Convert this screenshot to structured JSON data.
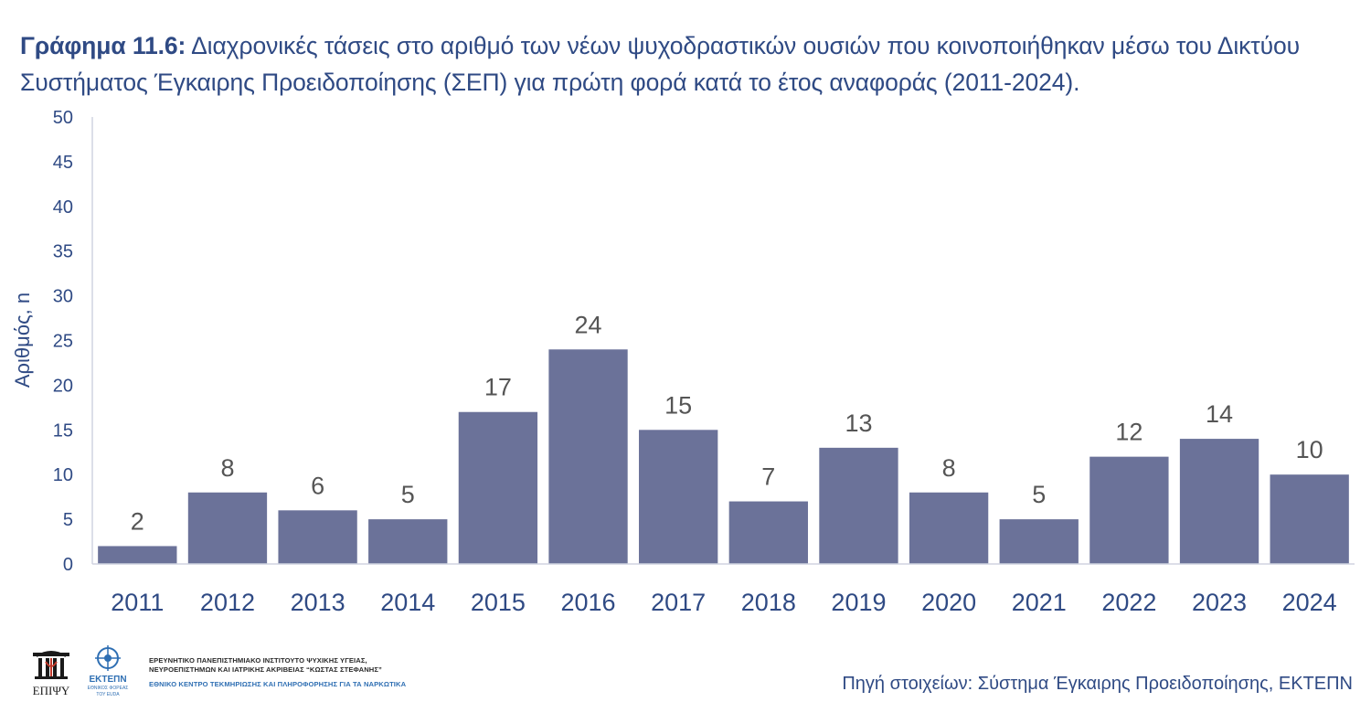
{
  "header": {
    "title_lead": "Γράφημα 11.6:",
    "title_text": "Διαχρονικές τάσεις στο αριθμό των νέων ψυχοδραστικών ουσιών που κοινοποιήθηκαν μέσω του Δικτύου Συστήματος Έγκαιρης Προειδοποίησης (ΣΕΠ) για πρώτη φορά κατά το έτος αναφοράς (2011-2024)."
  },
  "chart_data": {
    "type": "bar",
    "title": "Γράφημα 11.6: Διαχρονικές τάσεις στο αριθμό των νέων ψυχοδραστικών ουσιών που κοινοποιήθηκαν μέσω του Δικτύου Συστήματος Έγκαιρης Προειδοποίησης (ΣΕΠ) για πρώτη φορά κατά το έτος αναφοράς (2011-2024).",
    "xlabel": "",
    "ylabel": "Αριθμός, n",
    "categories": [
      "2011",
      "2012",
      "2013",
      "2014",
      "2015",
      "2016",
      "2017",
      "2018",
      "2019",
      "2020",
      "2021",
      "2022",
      "2023",
      "2024"
    ],
    "values": [
      2,
      8,
      6,
      5,
      17,
      24,
      15,
      7,
      13,
      8,
      5,
      12,
      14,
      10
    ],
    "ylim": [
      0,
      50
    ],
    "yticks": [
      0,
      5,
      10,
      15,
      20,
      25,
      30,
      35,
      40,
      45,
      50
    ],
    "data_labels": true,
    "grid": false,
    "legend": "none",
    "bar_color": "#6b7299"
  },
  "footer": {
    "logo_left_text": "ΕΠΙΨΥ",
    "logo_right_title": "ΕΚΤΕΠΝ",
    "logo_right_sub1": "ΕΘΝΙΚΟΣ ΦΟΡΕΑΣ",
    "logo_right_sub2": "ΤΟΥ EUDA",
    "org_line1": "ΕΡΕΥΝΗΤΙΚΟ ΠΑΝΕΠΙΣΤΗΜΙΑΚΟ ΙΝΣΤΙΤΟΥΤΟ ΨΥΧΙΚΗΣ ΥΓΕΙΑΣ,",
    "org_line2": "ΝΕΥΡΟΕΠΙΣΤΗΜΩΝ ΚΑΙ ΙΑΤΡΙΚΗΣ ΑΚΡΙΒΕΙΑΣ “ΚΩΣΤΑΣ ΣΤΕΦΑΝΗΣ”",
    "org_line3": "ΕΘΝΙΚΟ ΚΕΝΤΡΟ ΤΕΚΜΗΡΙΩΣΗΣ ΚΑΙ ΠΛΗΡΟΦΟΡΗΣΗΣ ΓΙΑ ΤΑ ΝΑΡΚΩΤΙΚΑ",
    "source": "Πηγή στοιχείων: Σύστημα Έγκαιρης Προειδοποίησης, ΕΚΤΕΠΝ"
  }
}
